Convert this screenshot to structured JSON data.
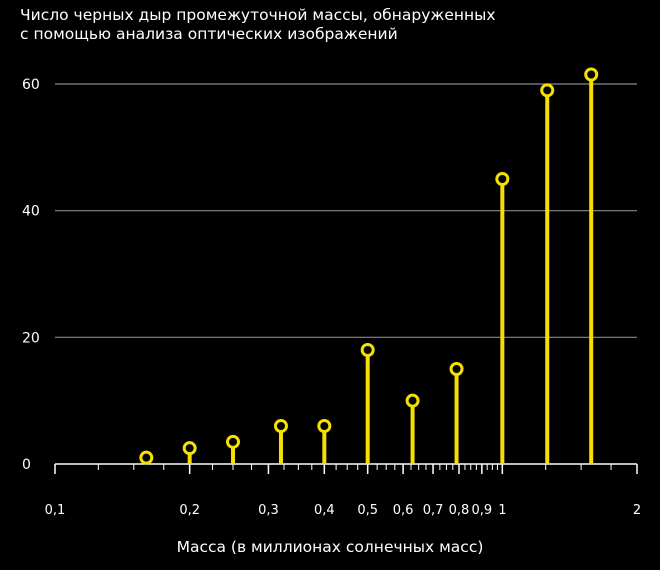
{
  "chart_data": {
    "type": "stem",
    "title": "Число черных дыр промежуточной массы, обнаруженных\nс помощью анализа оптических изображений",
    "xlabel": "Масса (в миллионах солнечных масс)",
    "ylabel": "",
    "x_scale": "log",
    "xlim": [
      0.1,
      2
    ],
    "ylim": [
      0,
      65
    ],
    "y_ticks": [
      0,
      20,
      40,
      60
    ],
    "y_tick_labels": [
      "0",
      "20",
      "40",
      "60"
    ],
    "x_tick_values": [
      0.1,
      0.2,
      0.3,
      0.4,
      0.5,
      0.6,
      0.7,
      0.8,
      0.9,
      1,
      2
    ],
    "x_tick_labels": [
      "0,1",
      "0,2",
      "0,3",
      "0,4",
      "0,5",
      "0,6",
      "0,7",
      "0,8",
      "0,9",
      "1",
      "2"
    ],
    "grid": "horizontal",
    "legend": "none",
    "points": [
      {
        "x": 0.16,
        "y": 1
      },
      {
        "x": 0.2,
        "y": 2.5
      },
      {
        "x": 0.25,
        "y": 3.5
      },
      {
        "x": 0.32,
        "y": 6
      },
      {
        "x": 0.4,
        "y": 6
      },
      {
        "x": 0.5,
        "y": 18
      },
      {
        "x": 0.63,
        "y": 10
      },
      {
        "x": 0.79,
        "y": 15
      },
      {
        "x": 1.0,
        "y": 45
      },
      {
        "x": 1.26,
        "y": 59
      },
      {
        "x": 1.58,
        "y": 61.5
      }
    ],
    "colors": {
      "background": "#000000",
      "stem": "#f5e000",
      "grid": "#8a8a8a",
      "axis": "#ffffff",
      "text": "#ffffff"
    }
  }
}
